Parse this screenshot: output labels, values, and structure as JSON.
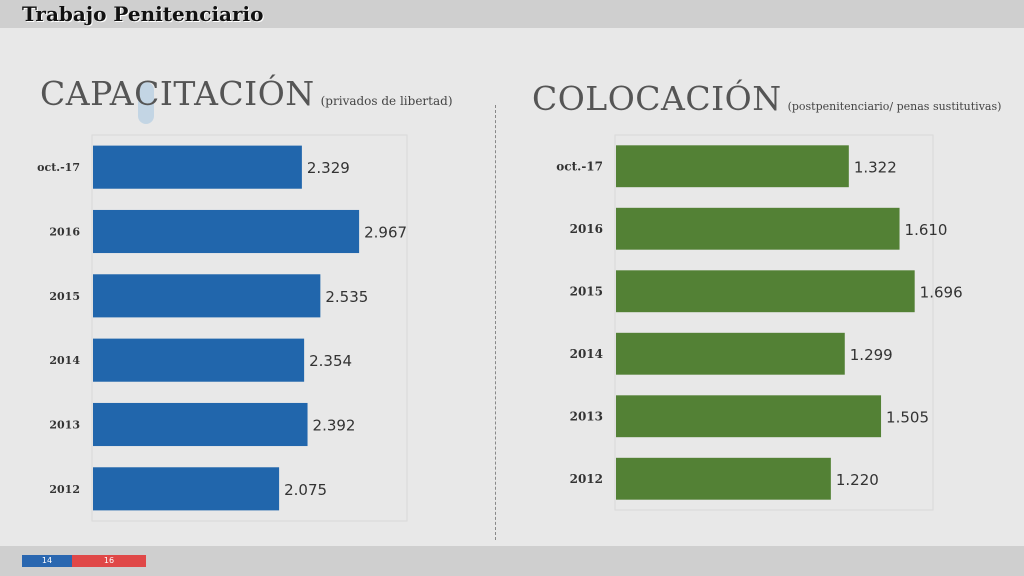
{
  "header": {
    "title": "Trabajo Penitenciario"
  },
  "footer": {
    "page_current": "14",
    "page_total": "16"
  },
  "colors": {
    "left_bar": "#2166ac",
    "right_bar": "#538135"
  },
  "chart_data": [
    {
      "type": "bar",
      "orientation": "horizontal",
      "title": "CAPACITACIÓN",
      "subtitle": "(privados de libertad)",
      "categories": [
        "oct.-17",
        "2016",
        "2015",
        "2014",
        "2013",
        "2012"
      ],
      "values": [
        2329,
        2967,
        2535,
        2354,
        2392,
        2075
      ],
      "value_labels": [
        "2.329",
        "2.967",
        "2.535",
        "2.354",
        "2.392",
        "2.075"
      ],
      "xlim": [
        0,
        3200
      ],
      "grid": false
    },
    {
      "type": "bar",
      "orientation": "horizontal",
      "title": "COLOCACIÓN",
      "subtitle": "(postpenitenciario/ penas sustitutivas)",
      "categories": [
        "oct.-17",
        "2016",
        "2015",
        "2014",
        "2013",
        "2012"
      ],
      "values": [
        1322,
        1610,
        1696,
        1299,
        1505,
        1220
      ],
      "value_labels": [
        "1.322",
        "1.610",
        "1.696",
        "1.299",
        "1.505",
        "1.220"
      ],
      "xlim": [
        0,
        1800
      ],
      "grid": false
    }
  ]
}
